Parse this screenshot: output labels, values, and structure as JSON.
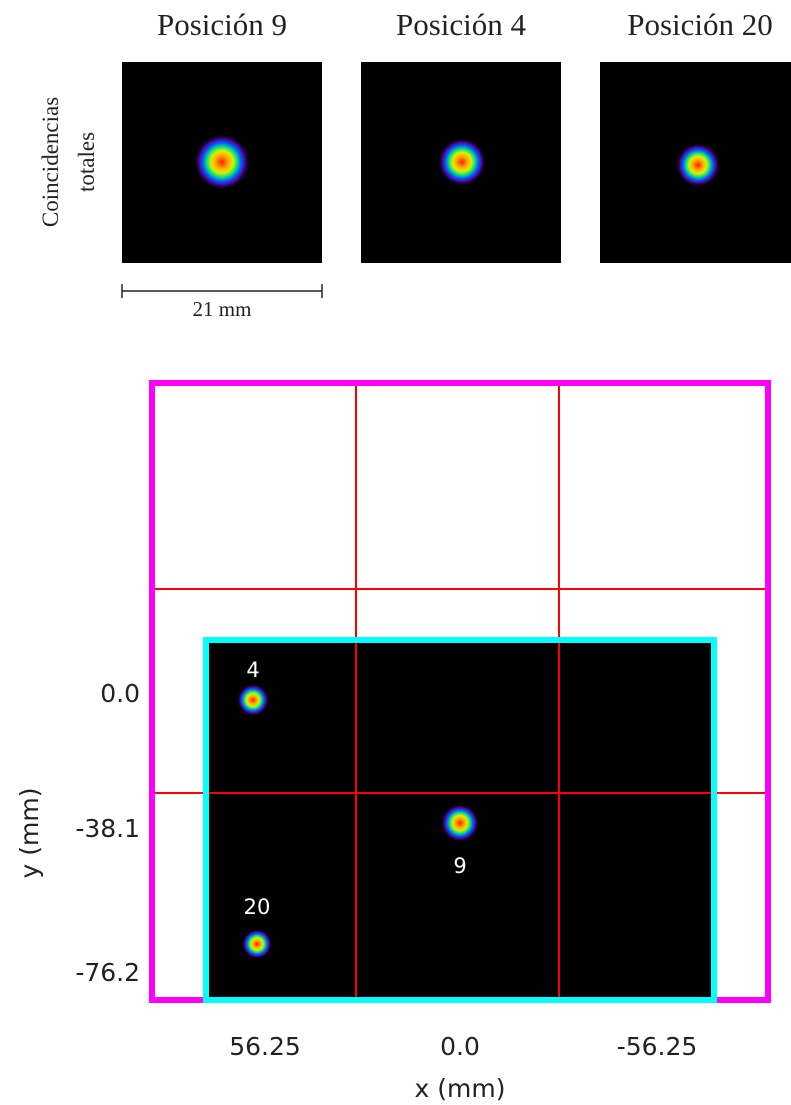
{
  "panels": [
    {
      "title": "Posición 9"
    },
    {
      "title": "Posición 4"
    },
    {
      "title": "Posición 20"
    }
  ],
  "panel_ylabel": [
    "Coincidencias",
    "totales"
  ],
  "scale_bar": "21 mm",
  "map": {
    "spots": [
      {
        "label": "4"
      },
      {
        "label": "9"
      },
      {
        "label": "20"
      }
    ],
    "yticks": [
      "0.0",
      "-38.1",
      "-76.2"
    ],
    "xticks": [
      "56.25",
      "0.0",
      "-56.25"
    ],
    "xlabel": "x (mm)",
    "ylabel": "y (mm)"
  }
}
